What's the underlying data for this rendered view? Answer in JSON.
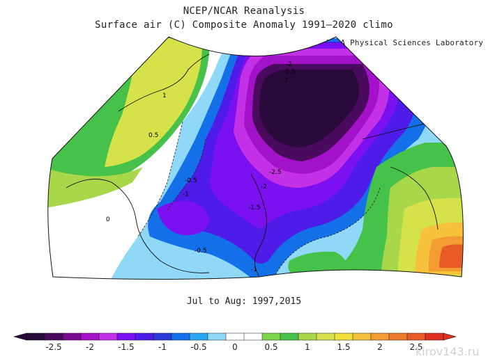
{
  "header": {
    "title": "NCEP/NCAR Reanalysis",
    "subtitle": "Surface air (C) Composite Anomaly 1991–2020 climo",
    "credit": "NOAA Physical Sciences Laboratory"
  },
  "period": "Jul to Aug: 1997,2015",
  "map": {
    "variable": "Surface air temperature anomaly",
    "units": "C",
    "contour_labels": [
      "-2",
      "-2.5",
      "-3",
      "1",
      "0.5",
      "-0.5",
      "-1",
      "-2.5",
      "-2",
      "-1.5",
      "0",
      "-0.5",
      "-1"
    ]
  },
  "colorbar": {
    "tick_labels": [
      "-2.5",
      "-2",
      "-1.5",
      "-1",
      "-0.5",
      "0",
      "0.5",
      "1",
      "1.5",
      "2",
      "2.5"
    ],
    "colors": [
      "#2a0a3a",
      "#4a0a5e",
      "#7a0a90",
      "#a312c8",
      "#c430e6",
      "#7b10f0",
      "#4f1be8",
      "#2a3ad8",
      "#1470e8",
      "#2aa7f4",
      "#8fd8f8",
      "#ffffff",
      "#ffffff",
      "#7cd44a",
      "#46c24a",
      "#a8d84a",
      "#d6e24a",
      "#f2e03a",
      "#f6c23a",
      "#f29c32",
      "#ee7a2e",
      "#e85a28",
      "#e03020"
    ]
  },
  "watermark": "kirov143.ru"
}
